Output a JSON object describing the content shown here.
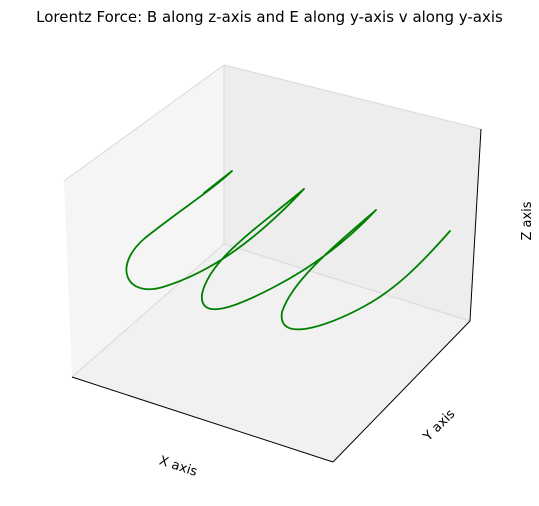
{
  "chart_data": {
    "type": "line3d",
    "title": "Lorentz Force: B along z-axis and E along y-axis v along y-axis",
    "xlabel": "X axis",
    "ylabel": "Y axis",
    "zlabel": "Z axis",
    "grid": false,
    "ticks": "none",
    "series": [
      {
        "color": "#008000",
        "shape": "helix-like trajectory with three loops"
      }
    ]
  },
  "colors": {
    "line": "#008000",
    "pane_left": "#f5f5f5",
    "pane_back": "#ededed",
    "pane_bottom": "#f1f1f1",
    "axis": "#000000",
    "text": "#000000"
  }
}
